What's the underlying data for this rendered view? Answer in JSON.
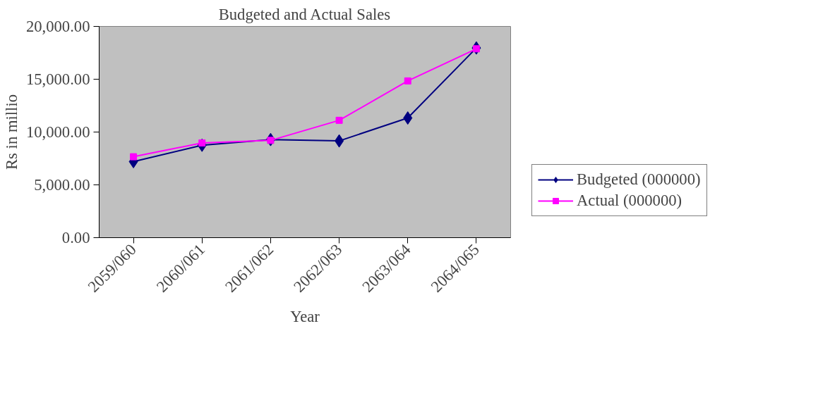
{
  "chart_data": {
    "type": "line",
    "title": "Budgeted and Actual Sales",
    "xlabel": "Year",
    "ylabel": "Rs in millio",
    "categories": [
      "2059/060",
      "2060/061",
      "2061/062",
      "2062/063",
      "2063/064",
      "2064/065"
    ],
    "series": [
      {
        "name": "Budgeted (000000)",
        "color": "#000080",
        "marker": "diamond",
        "values": [
          7200,
          8750,
          9290,
          9160,
          11330,
          17960
        ]
      },
      {
        "name": "Actual (000000)",
        "color": "#ff00ff",
        "marker": "square",
        "values": [
          7660,
          8970,
          9210,
          11110,
          14840,
          17880
        ]
      }
    ],
    "ylim": [
      0,
      20000
    ],
    "yticks": [
      {
        "value": 0,
        "label": "0.00"
      },
      {
        "value": 5000,
        "label": "5,000.00"
      },
      {
        "value": 10000,
        "label": "10,000.00"
      },
      {
        "value": 15000,
        "label": "15,000.00"
      },
      {
        "value": 20000,
        "label": "20,000.00"
      }
    ],
    "grid": false,
    "legend": "right",
    "line_style": "solid"
  }
}
